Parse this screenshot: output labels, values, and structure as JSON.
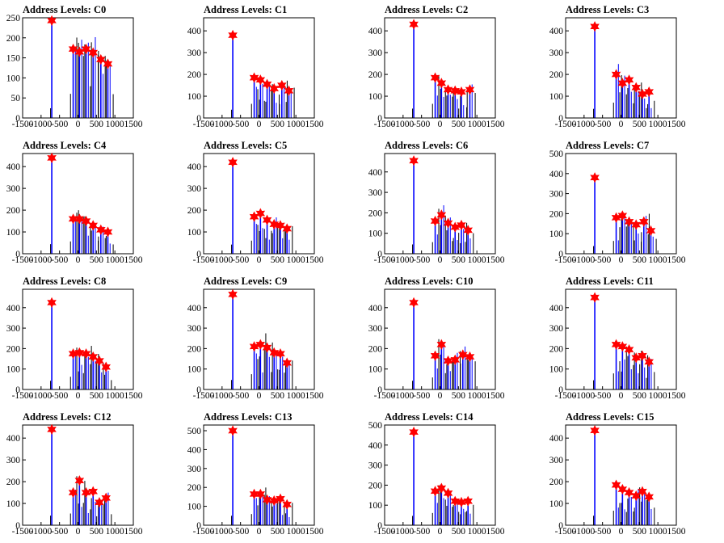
{
  "chart_data": [
    {
      "type": "histogram",
      "title": "Address Levels: C0",
      "xlim": [
        -1500,
        1500
      ],
      "ylim": [
        0,
        250
      ],
      "yticks": [
        0,
        50,
        100,
        150,
        200,
        250
      ],
      "xticks": [
        -1500,
        -1000,
        -500,
        0,
        500,
        1000,
        1500
      ],
      "peaks": [
        {
          "x": -710,
          "y": 243
        },
        {
          "x": -130,
          "y": 172
        },
        {
          "x": 40,
          "y": 165
        },
        {
          "x": 220,
          "y": 172
        },
        {
          "x": 410,
          "y": 163
        },
        {
          "x": 620,
          "y": 146
        },
        {
          "x": 810,
          "y": 135
        }
      ]
    },
    {
      "type": "histogram",
      "title": "Address Levels: C1",
      "xlim": [
        -1500,
        1500
      ],
      "ylim": [
        0,
        460
      ],
      "yticks": [
        0,
        100,
        200,
        300,
        400
      ],
      "xticks": [
        -1500,
        -1000,
        -500,
        0,
        500,
        1000,
        1500
      ],
      "peaks": [
        {
          "x": -710,
          "y": 380
        },
        {
          "x": -130,
          "y": 185
        },
        {
          "x": 40,
          "y": 175
        },
        {
          "x": 220,
          "y": 155
        },
        {
          "x": 410,
          "y": 135
        },
        {
          "x": 620,
          "y": 150
        },
        {
          "x": 810,
          "y": 125
        }
      ]
    },
    {
      "type": "histogram",
      "title": "Address Levels: C2",
      "xlim": [
        -1500,
        1500
      ],
      "ylim": [
        0,
        460
      ],
      "yticks": [
        0,
        100,
        200,
        300,
        400
      ],
      "xticks": [
        -1500,
        -1000,
        -500,
        0,
        500,
        1000,
        1500
      ],
      "peaks": [
        {
          "x": -710,
          "y": 430
        },
        {
          "x": -130,
          "y": 185
        },
        {
          "x": 40,
          "y": 160
        },
        {
          "x": 220,
          "y": 130
        },
        {
          "x": 410,
          "y": 125
        },
        {
          "x": 580,
          "y": 120
        },
        {
          "x": 810,
          "y": 130
        }
      ]
    },
    {
      "type": "histogram",
      "title": "Address Levels: C3",
      "xlim": [
        -1500,
        1500
      ],
      "ylim": [
        0,
        460
      ],
      "yticks": [
        0,
        100,
        200,
        300,
        400
      ],
      "xticks": [
        -1500,
        -1000,
        -500,
        0,
        500,
        1000,
        1500
      ],
      "peaks": [
        {
          "x": -710,
          "y": 420
        },
        {
          "x": -130,
          "y": 200
        },
        {
          "x": 40,
          "y": 160
        },
        {
          "x": 220,
          "y": 175
        },
        {
          "x": 410,
          "y": 140
        },
        {
          "x": 580,
          "y": 110
        },
        {
          "x": 760,
          "y": 120
        }
      ]
    },
    {
      "type": "histogram",
      "title": "Address Levels: C4",
      "xlim": [
        -1500,
        1500
      ],
      "ylim": [
        0,
        460
      ],
      "yticks": [
        0,
        100,
        200,
        300,
        400
      ],
      "xticks": [
        -1500,
        -1000,
        -500,
        0,
        500,
        1000,
        1500
      ],
      "peaks": [
        {
          "x": -710,
          "y": 440
        },
        {
          "x": -130,
          "y": 160
        },
        {
          "x": 40,
          "y": 160
        },
        {
          "x": 220,
          "y": 150
        },
        {
          "x": 410,
          "y": 130
        },
        {
          "x": 620,
          "y": 110
        },
        {
          "x": 810,
          "y": 100
        }
      ]
    },
    {
      "type": "histogram",
      "title": "Address Levels: C5",
      "xlim": [
        -1500,
        1500
      ],
      "ylim": [
        0,
        460
      ],
      "yticks": [
        0,
        100,
        200,
        300,
        400
      ],
      "xticks": [
        -1500,
        -1000,
        -500,
        0,
        500,
        1000,
        1500
      ],
      "peaks": [
        {
          "x": -710,
          "y": 420
        },
        {
          "x": -130,
          "y": 170
        },
        {
          "x": 40,
          "y": 185
        },
        {
          "x": 220,
          "y": 155
        },
        {
          "x": 410,
          "y": 135
        },
        {
          "x": 580,
          "y": 130
        },
        {
          "x": 760,
          "y": 115
        }
      ]
    },
    {
      "type": "histogram",
      "title": "Address Levels: C6",
      "xlim": [
        -1500,
        1500
      ],
      "ylim": [
        0,
        490
      ],
      "yticks": [
        0,
        100,
        200,
        300,
        400
      ],
      "xticks": [
        -1500,
        -1000,
        -500,
        0,
        500,
        1000,
        1500
      ],
      "peaks": [
        {
          "x": -710,
          "y": 455
        },
        {
          "x": -130,
          "y": 160
        },
        {
          "x": 40,
          "y": 190
        },
        {
          "x": 220,
          "y": 150
        },
        {
          "x": 410,
          "y": 130
        },
        {
          "x": 580,
          "y": 140
        },
        {
          "x": 760,
          "y": 115
        }
      ]
    },
    {
      "type": "histogram",
      "title": "Address Levels: C7",
      "xlim": [
        -1500,
        1500
      ],
      "ylim": [
        0,
        500
      ],
      "yticks": [
        0,
        100,
        200,
        300,
        400,
        500
      ],
      "xticks": [
        -1500,
        -1000,
        -500,
        0,
        500,
        1000,
        1500
      ],
      "peaks": [
        {
          "x": -710,
          "y": 380
        },
        {
          "x": -130,
          "y": 180
        },
        {
          "x": 40,
          "y": 190
        },
        {
          "x": 220,
          "y": 160
        },
        {
          "x": 410,
          "y": 145
        },
        {
          "x": 620,
          "y": 160
        },
        {
          "x": 810,
          "y": 115
        }
      ]
    },
    {
      "type": "histogram",
      "title": "Address Levels: C8",
      "xlim": [
        -1500,
        1500
      ],
      "ylim": [
        0,
        490
      ],
      "yticks": [
        0,
        100,
        200,
        300,
        400
      ],
      "xticks": [
        -1500,
        -1000,
        -500,
        0,
        500,
        1000,
        1500
      ],
      "peaks": [
        {
          "x": -710,
          "y": 425
        },
        {
          "x": -130,
          "y": 175
        },
        {
          "x": 40,
          "y": 180
        },
        {
          "x": 220,
          "y": 175
        },
        {
          "x": 410,
          "y": 160
        },
        {
          "x": 580,
          "y": 140
        },
        {
          "x": 760,
          "y": 110
        }
      ]
    },
    {
      "type": "histogram",
      "title": "Address Levels: C9",
      "xlim": [
        -1500,
        1500
      ],
      "ylim": [
        0,
        490
      ],
      "yticks": [
        0,
        100,
        200,
        300,
        400
      ],
      "xticks": [
        -1500,
        -1000,
        -500,
        0,
        500,
        1000,
        1500
      ],
      "peaks": [
        {
          "x": -710,
          "y": 465
        },
        {
          "x": -130,
          "y": 210
        },
        {
          "x": 40,
          "y": 220
        },
        {
          "x": 220,
          "y": 205
        },
        {
          "x": 410,
          "y": 180
        },
        {
          "x": 580,
          "y": 175
        },
        {
          "x": 760,
          "y": 130
        }
      ]
    },
    {
      "type": "histogram",
      "title": "Address Levels: C10",
      "xlim": [
        -1500,
        1500
      ],
      "ylim": [
        0,
        490
      ],
      "yticks": [
        0,
        100,
        200,
        300,
        400
      ],
      "xticks": [
        -1500,
        -1000,
        -500,
        0,
        500,
        1000,
        1500
      ],
      "peaks": [
        {
          "x": -710,
          "y": 425
        },
        {
          "x": -130,
          "y": 165
        },
        {
          "x": 40,
          "y": 220
        },
        {
          "x": 220,
          "y": 140
        },
        {
          "x": 410,
          "y": 145
        },
        {
          "x": 620,
          "y": 170
        },
        {
          "x": 810,
          "y": 160
        }
      ]
    },
    {
      "type": "histogram",
      "title": "Address Levels: C11",
      "xlim": [
        -1500,
        1500
      ],
      "ylim": [
        0,
        490
      ],
      "yticks": [
        0,
        100,
        200,
        300,
        400
      ],
      "xticks": [
        -1500,
        -1000,
        -500,
        0,
        500,
        1000,
        1500
      ],
      "peaks": [
        {
          "x": -710,
          "y": 450
        },
        {
          "x": -130,
          "y": 220
        },
        {
          "x": 40,
          "y": 210
        },
        {
          "x": 220,
          "y": 195
        },
        {
          "x": 410,
          "y": 155
        },
        {
          "x": 580,
          "y": 165
        },
        {
          "x": 760,
          "y": 135
        }
      ]
    },
    {
      "type": "histogram",
      "title": "Address Levels: C12",
      "xlim": [
        -1500,
        1500
      ],
      "ylim": [
        0,
        460
      ],
      "yticks": [
        0,
        100,
        200,
        300,
        400
      ],
      "xticks": [
        -1500,
        -1000,
        -500,
        0,
        500,
        1000,
        1500
      ],
      "peaks": [
        {
          "x": -710,
          "y": 440
        },
        {
          "x": -130,
          "y": 150
        },
        {
          "x": 40,
          "y": 205
        },
        {
          "x": 220,
          "y": 150
        },
        {
          "x": 410,
          "y": 155
        },
        {
          "x": 580,
          "y": 105
        },
        {
          "x": 760,
          "y": 125
        }
      ]
    },
    {
      "type": "histogram",
      "title": "Address Levels: C13",
      "xlim": [
        -1500,
        1500
      ],
      "ylim": [
        0,
        530
      ],
      "yticks": [
        0,
        100,
        200,
        300,
        400,
        500
      ],
      "xticks": [
        -1500,
        -1000,
        -500,
        0,
        500,
        1000,
        1500
      ],
      "peaks": [
        {
          "x": -710,
          "y": 500
        },
        {
          "x": -130,
          "y": 165
        },
        {
          "x": 40,
          "y": 165
        },
        {
          "x": 220,
          "y": 135
        },
        {
          "x": 410,
          "y": 130
        },
        {
          "x": 580,
          "y": 140
        },
        {
          "x": 760,
          "y": 110
        }
      ]
    },
    {
      "type": "histogram",
      "title": "Address Levels: C14",
      "xlim": [
        -1500,
        1500
      ],
      "ylim": [
        0,
        500
      ],
      "yticks": [
        0,
        100,
        200,
        300,
        400,
        500
      ],
      "xticks": [
        -1500,
        -1000,
        -500,
        0,
        500,
        1000,
        1500
      ],
      "peaks": [
        {
          "x": -710,
          "y": 465
        },
        {
          "x": -130,
          "y": 170
        },
        {
          "x": 40,
          "y": 185
        },
        {
          "x": 220,
          "y": 160
        },
        {
          "x": 410,
          "y": 120
        },
        {
          "x": 580,
          "y": 115
        },
        {
          "x": 760,
          "y": 120
        }
      ]
    },
    {
      "type": "histogram",
      "title": "Address Levels: C15",
      "xlim": [
        -1500,
        1500
      ],
      "ylim": [
        0,
        460
      ],
      "yticks": [
        0,
        100,
        200,
        300,
        400
      ],
      "xticks": [
        -1500,
        -1000,
        -500,
        0,
        500,
        1000,
        1500
      ],
      "peaks": [
        {
          "x": -710,
          "y": 435
        },
        {
          "x": -130,
          "y": 185
        },
        {
          "x": 40,
          "y": 165
        },
        {
          "x": 220,
          "y": 150
        },
        {
          "x": 410,
          "y": 135
        },
        {
          "x": 580,
          "y": 155
        },
        {
          "x": 760,
          "y": 130
        }
      ]
    }
  ],
  "colors": {
    "histogram": "#0000ff",
    "secondary": "#000000",
    "marker": "#ff0000"
  }
}
